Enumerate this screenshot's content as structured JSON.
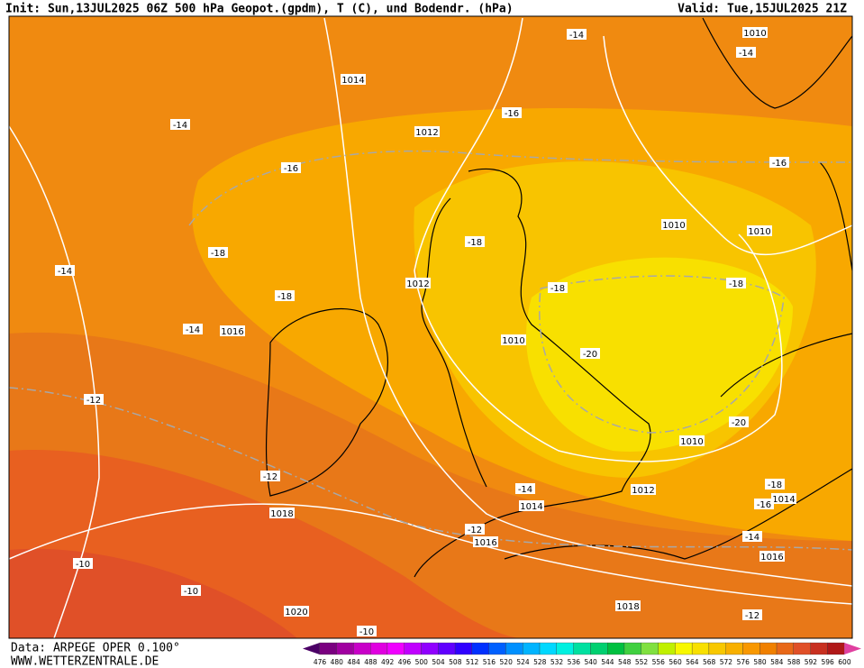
{
  "header": {
    "left": "Init: Sun,13JUL2025 06Z 500 hPa Geopot.(gpdm), T (C), und Bodendr. (hPa)",
    "right": "Valid: Tue,15JUL2025 21Z"
  },
  "footer": {
    "source": "Data: ARPEGE OPER 0.100°",
    "site": "WWW.WETTERZENTRALE.DE"
  },
  "isobar_labels": [
    "1014",
    "1012",
    "1012",
    "1016",
    "1010",
    "1010",
    "1010",
    "1010",
    "1012",
    "1014",
    "1014",
    "1016",
    "1016",
    "1018",
    "1018",
    "1020",
    "1010"
  ],
  "temperature_labels": [
    "-14",
    "-14",
    "-16",
    "-14",
    "-16",
    "-16",
    "-18",
    "-18",
    "-14",
    "-18",
    "-18",
    "-18",
    "-14",
    "-20",
    "-12",
    "-20",
    "-12",
    "-18",
    "-16",
    "-14",
    "-12",
    "-14",
    "-10",
    "-10",
    "-12",
    "-10"
  ],
  "scale": {
    "labels": [
      476,
      480,
      484,
      488,
      492,
      496,
      500,
      504,
      508,
      512,
      516,
      520,
      524,
      528,
      532,
      536,
      540,
      544,
      548,
      552,
      556,
      560,
      564,
      568,
      572,
      576,
      580,
      584,
      588,
      592,
      596,
      600
    ],
    "colors": [
      "#4b0066",
      "#7a0080",
      "#a000a0",
      "#c800c8",
      "#e000e0",
      "#f000ff",
      "#c000ff",
      "#9000ff",
      "#6000ff",
      "#3000ff",
      "#0030ff",
      "#0060ff",
      "#0090ff",
      "#00b4ff",
      "#00d8ff",
      "#00f0e0",
      "#00e0a0",
      "#00d070",
      "#00c040",
      "#40d040",
      "#80e040",
      "#c0f000",
      "#f8f800",
      "#f8e000",
      "#f8c800",
      "#f8b000",
      "#f89800",
      "#f08000",
      "#e86818",
      "#e05028",
      "#c83020",
      "#b01818",
      "#e040a0"
    ]
  }
}
